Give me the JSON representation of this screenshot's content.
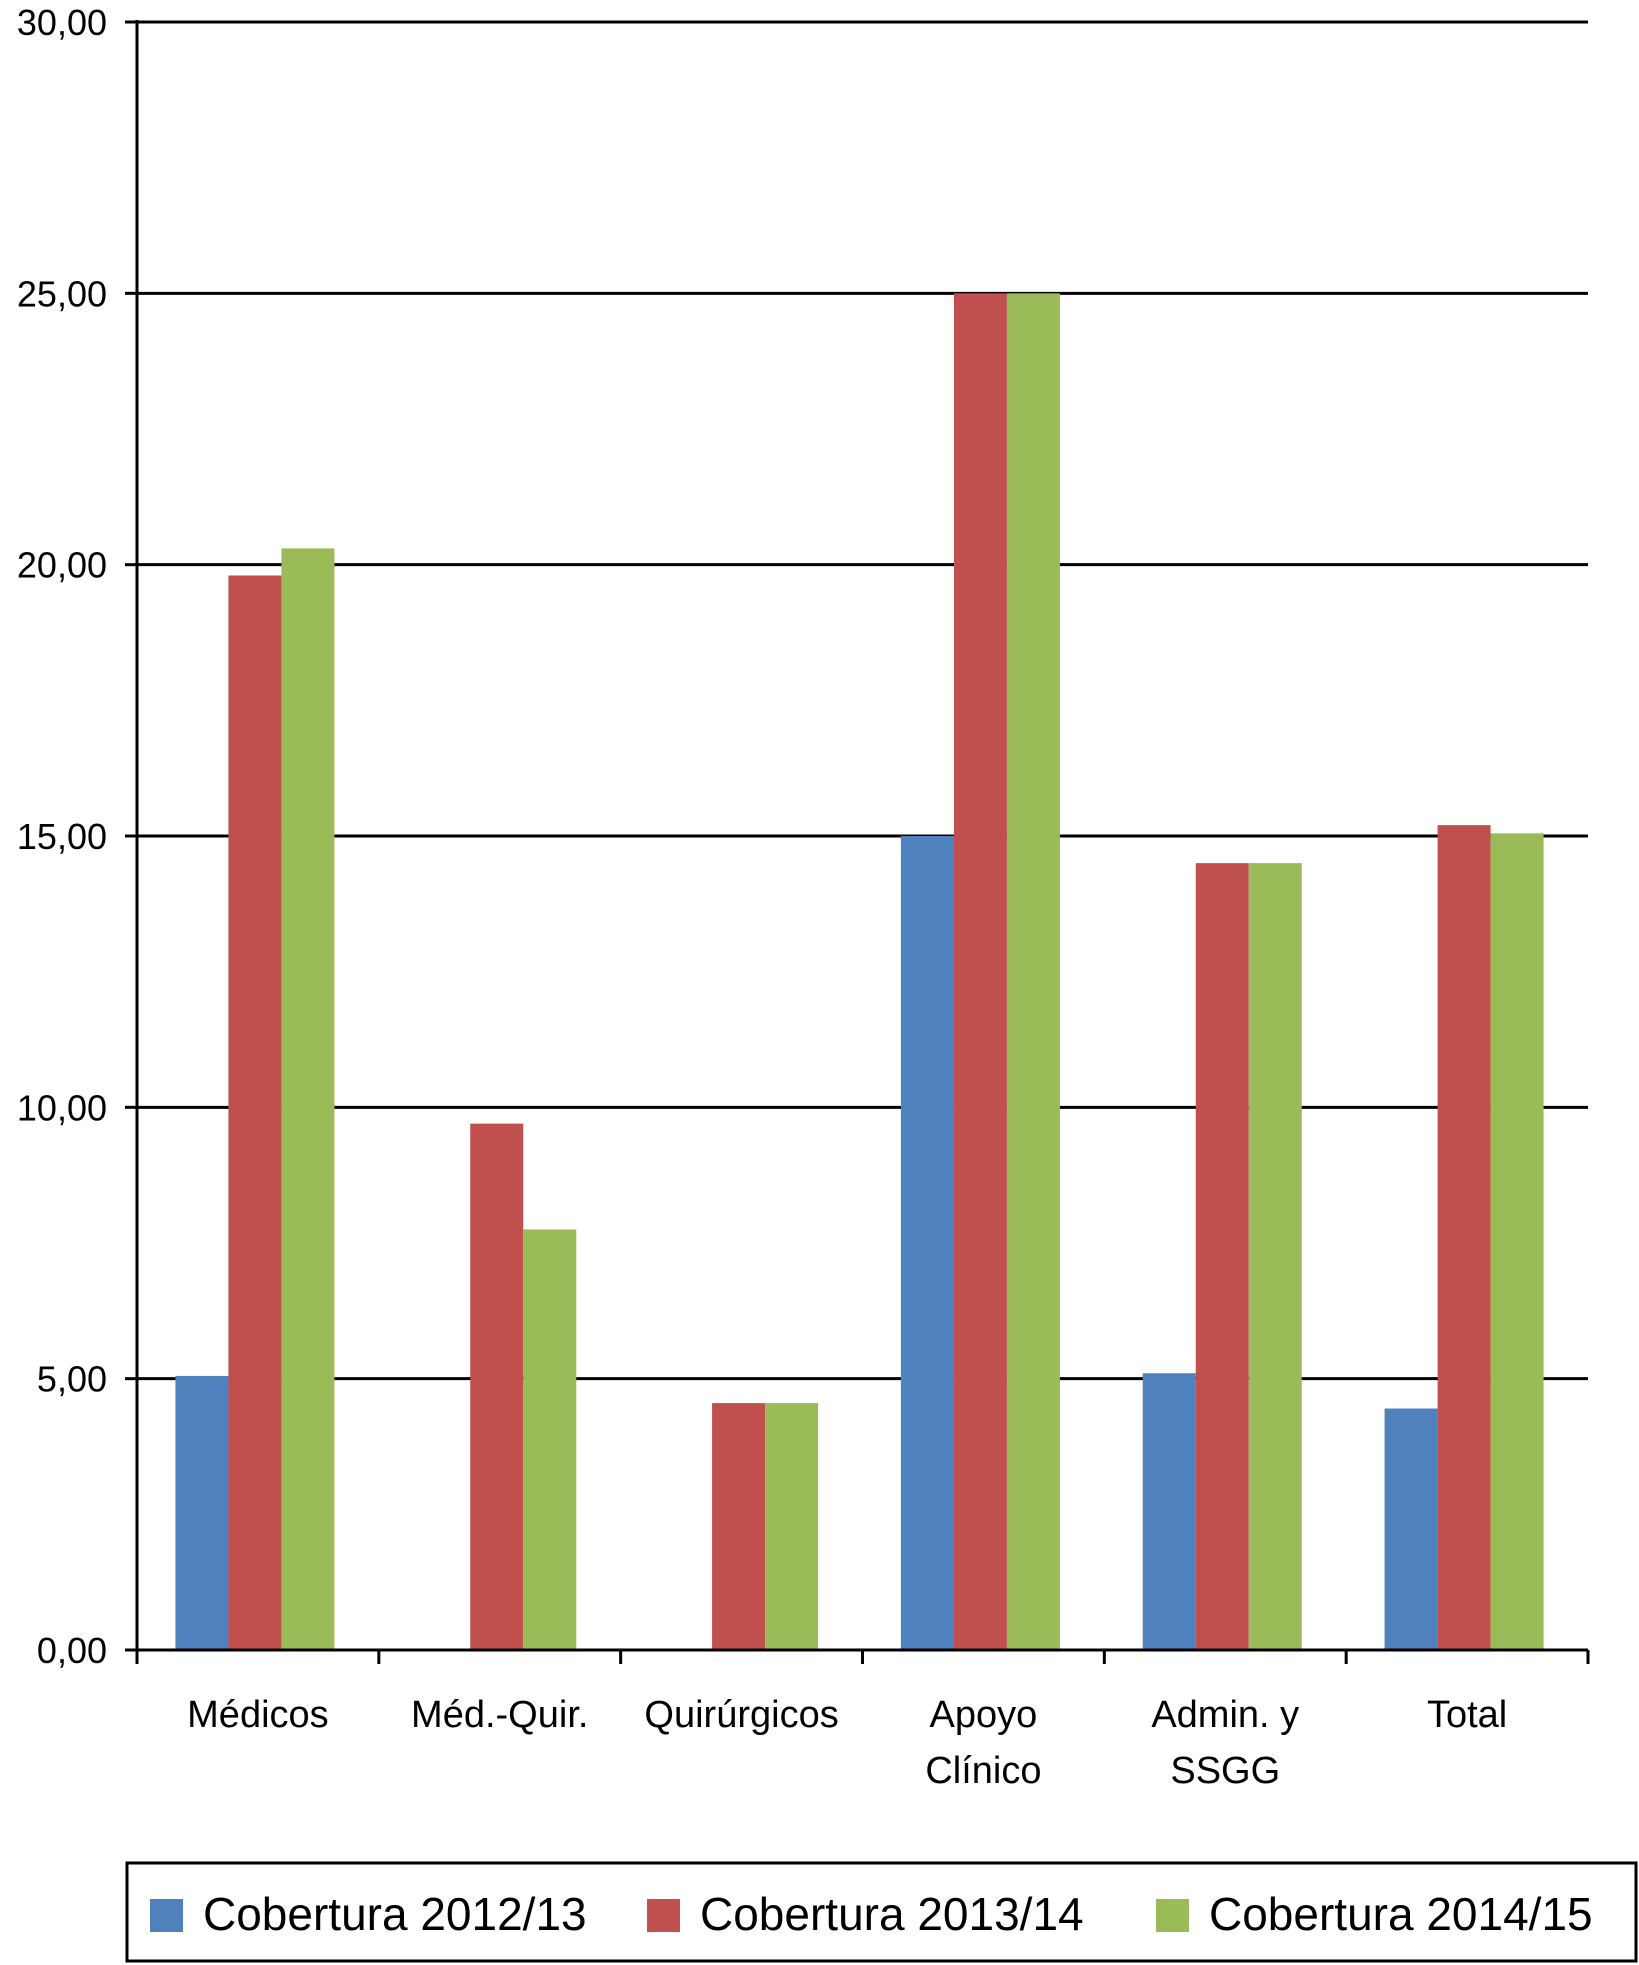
{
  "chart_data": {
    "type": "bar",
    "categories": [
      [
        "Médicos"
      ],
      [
        "Méd.-Quir."
      ],
      [
        "Quirúrgicos"
      ],
      [
        "Apoyo",
        "Clínico"
      ],
      [
        "Admin. y",
        "SSGG"
      ],
      [
        "Total"
      ]
    ],
    "series": [
      {
        "name": "Cobertura 2012/13",
        "color": "#4F81BD",
        "values": [
          5.05,
          0,
          0,
          15.0,
          5.1,
          4.45
        ]
      },
      {
        "name": "Cobertura 2013/14",
        "color": "#C0504D",
        "values": [
          19.8,
          9.7,
          4.55,
          25.0,
          14.5,
          15.2
        ]
      },
      {
        "name": "Cobertura 2014/15",
        "color": "#9BBB59",
        "values": [
          20.3,
          7.75,
          4.55,
          25.0,
          14.5,
          15.05
        ]
      }
    ],
    "yticks": [
      "0,00",
      "5,00",
      "10,00",
      "15,00",
      "20,00",
      "25,00",
      "30,00"
    ],
    "ylim": [
      0,
      30
    ],
    "grid": true,
    "legend": "bottom"
  }
}
